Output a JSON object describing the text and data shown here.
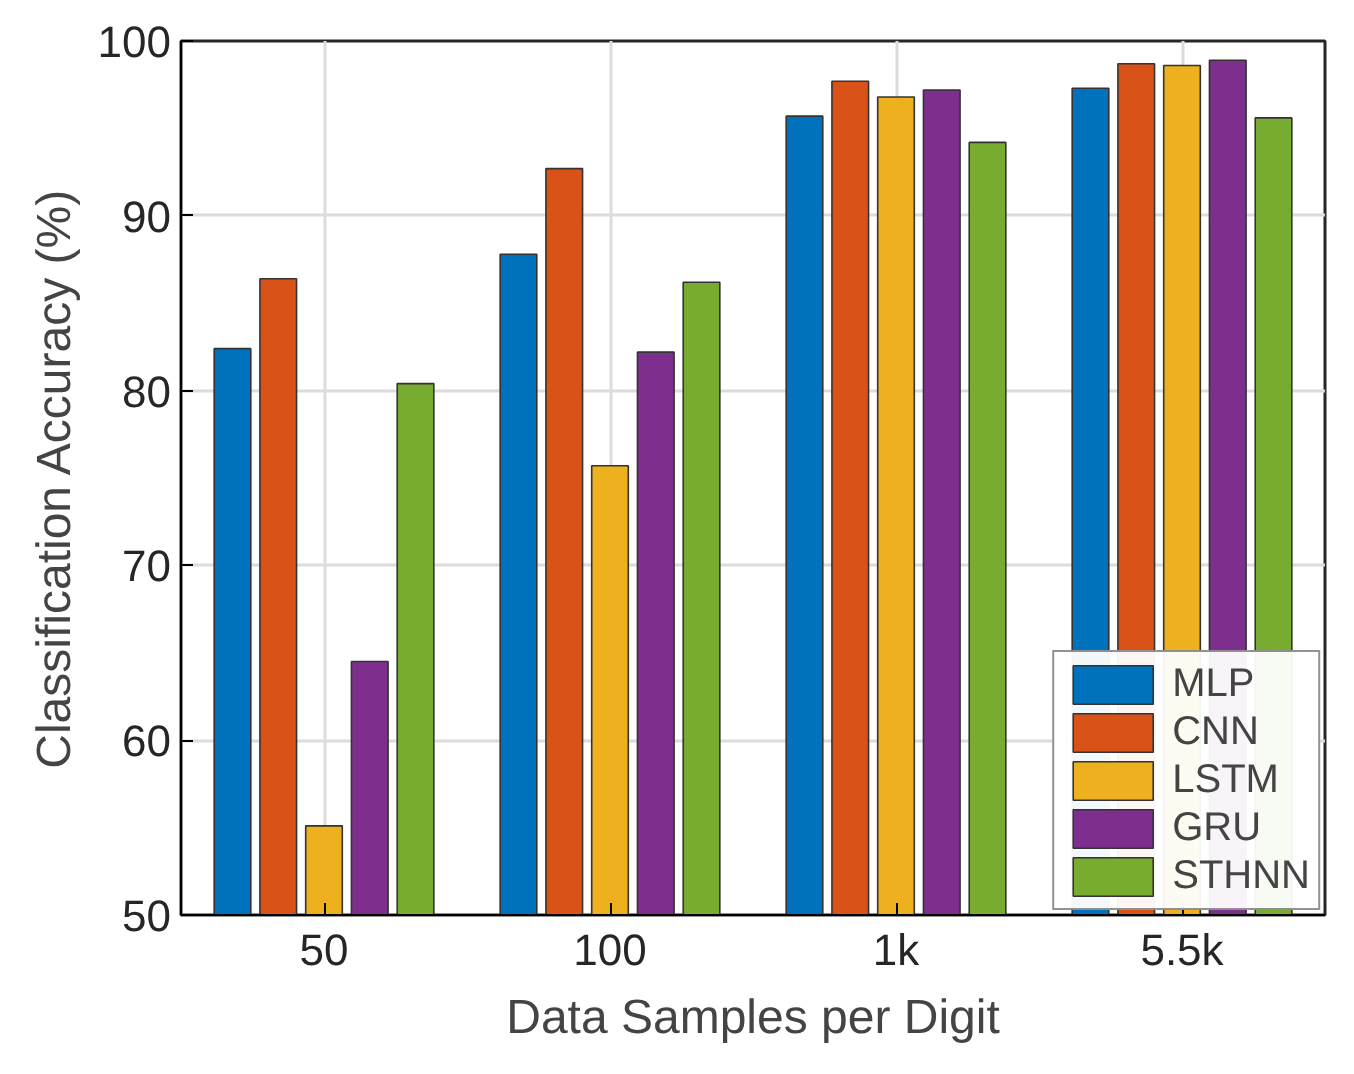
{
  "chart_data": {
    "type": "bar",
    "xlabel": "Data Samples per Digit",
    "ylabel": "Classification Accuracy (%)",
    "categories": [
      "50",
      "100",
      "1k",
      "5.5k"
    ],
    "series": [
      {
        "name": "MLP",
        "color": "#0072bd",
        "values": [
          82.4,
          87.8,
          95.7,
          97.3
        ]
      },
      {
        "name": "CNN",
        "color": "#d95319",
        "values": [
          86.4,
          92.7,
          97.7,
          98.7
        ]
      },
      {
        "name": "LSTM",
        "color": "#edb120",
        "values": [
          55.1,
          75.7,
          96.8,
          98.6
        ]
      },
      {
        "name": "GRU",
        "color": "#7e2f8e",
        "values": [
          64.5,
          82.2,
          97.2,
          98.9
        ]
      },
      {
        "name": "STHNN",
        "color": "#77ac30",
        "values": [
          80.4,
          86.2,
          94.2,
          95.6
        ]
      }
    ],
    "ylim": [
      50,
      100
    ],
    "yticks": [
      50,
      60,
      70,
      80,
      90,
      100
    ],
    "grid": true,
    "legend": "bottom right"
  }
}
